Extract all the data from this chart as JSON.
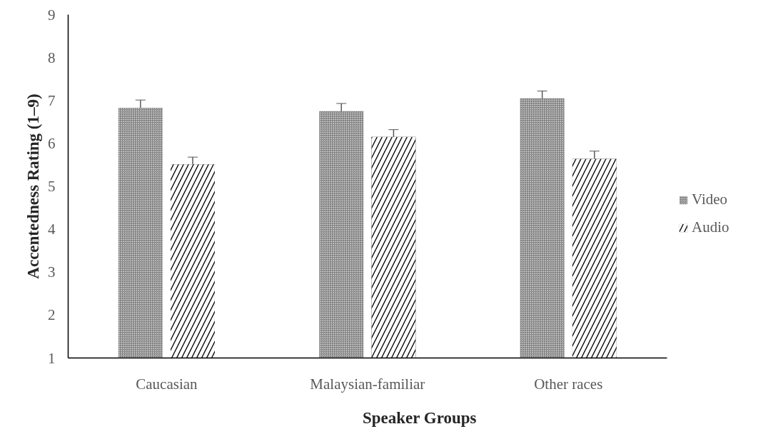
{
  "chart_data": {
    "type": "bar",
    "xlabel": "Speaker Groups",
    "ylabel": "Accentedness Rating (1–9)",
    "categories": [
      "Caucasian",
      "Malaysian-familiar",
      "Other races"
    ],
    "series": [
      {
        "name": "Video",
        "color": "#6e6e6e",
        "values": [
          6.83,
          6.75,
          7.05
        ],
        "errors": [
          0.18,
          0.18,
          0.17
        ]
      },
      {
        "name": "Audio",
        "color": "#000000",
        "values": [
          5.51,
          6.15,
          5.64
        ],
        "errors": [
          0.17,
          0.17,
          0.18
        ]
      }
    ],
    "ylim": [
      1,
      9
    ],
    "yticks": [
      1,
      2,
      3,
      4,
      5,
      6,
      7,
      8,
      9
    ],
    "grid": false,
    "legend": "right"
  }
}
